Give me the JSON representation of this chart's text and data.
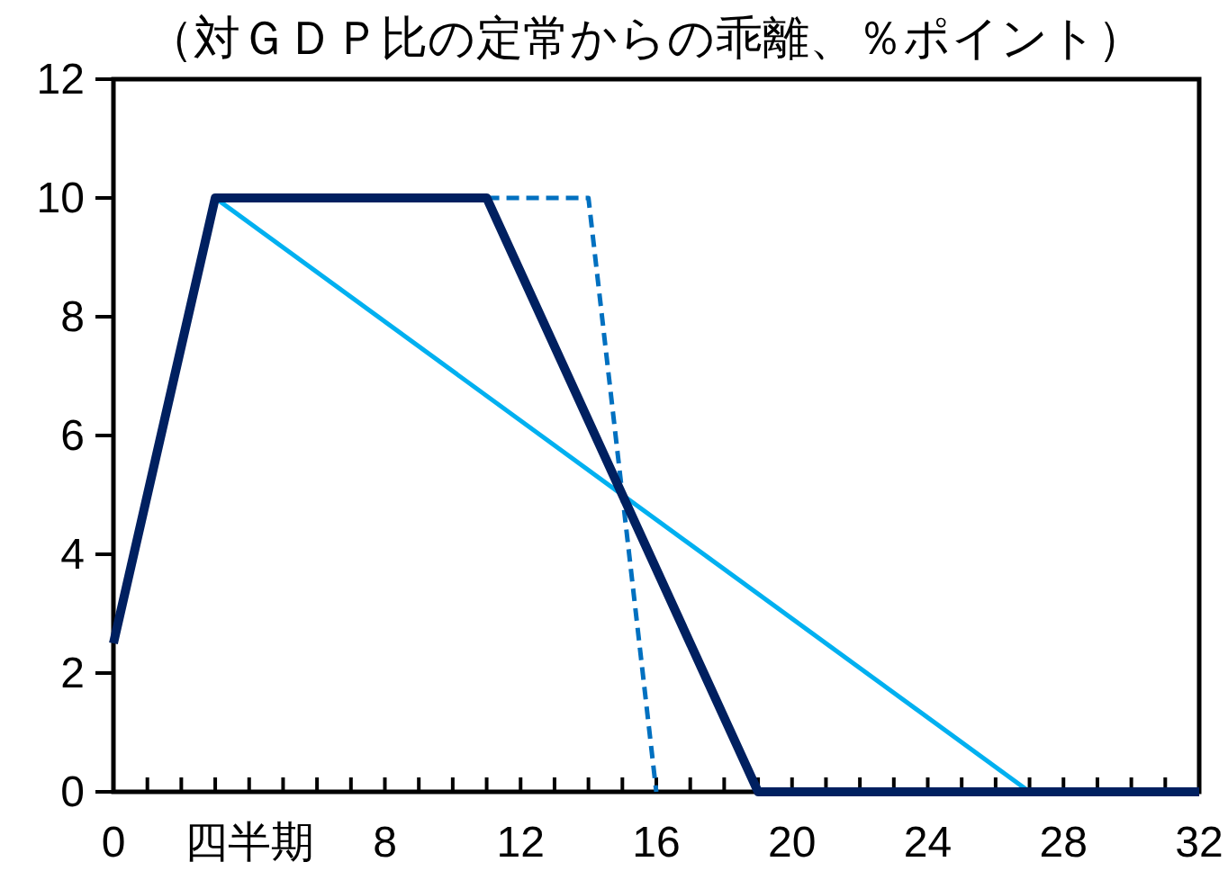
{
  "chart_data": {
    "type": "line",
    "title": "（対ＧＤＰ比の定常からの乖離、％ポイント）",
    "xlim": [
      0,
      32
    ],
    "xticks": [
      0,
      {
        "value": 1,
        "label": null
      },
      {
        "value": 2,
        "label": null
      },
      {
        "value": 3,
        "label": null
      },
      {
        "value": 4,
        "label": "四半期"
      },
      {
        "value": 5,
        "label": null
      },
      {
        "value": 6,
        "label": null
      },
      {
        "value": 7,
        "label": null
      },
      8,
      {
        "value": 9,
        "label": null
      },
      {
        "value": 10,
        "label": null
      },
      {
        "value": 11,
        "label": null
      },
      12,
      {
        "value": 13,
        "label": null
      },
      {
        "value": 14,
        "label": null
      },
      {
        "value": 15,
        "label": null
      },
      16,
      {
        "value": 17,
        "label": null
      },
      {
        "value": 18,
        "label": null
      },
      {
        "value": 19,
        "label": null
      },
      20,
      {
        "value": 21,
        "label": null
      },
      {
        "value": 22,
        "label": null
      },
      {
        "value": 23,
        "label": null
      },
      24,
      {
        "value": 25,
        "label": null
      },
      {
        "value": 26,
        "label": null
      },
      {
        "value": 27,
        "label": null
      },
      28,
      {
        "value": 29,
        "label": null
      },
      {
        "value": 30,
        "label": null
      },
      {
        "value": 31,
        "label": null
      },
      32
    ],
    "ylim": [
      0,
      12
    ],
    "yticks": [
      0,
      2,
      4,
      6,
      8,
      10,
      12
    ],
    "marker": "none",
    "series": [
      {
        "color": "#002060",
        "line_style": "solid",
        "x": [
          0,
          3,
          11,
          19,
          32
        ],
        "values": [
          2.5,
          10,
          10,
          0,
          0
        ]
      },
      {
        "color": "#0070c0",
        "line_style": "dashed",
        "x": [
          11,
          14,
          16
        ],
        "values": [
          10,
          10,
          0
        ]
      },
      {
        "color": "#00b0f0",
        "line_style": "solid",
        "x": [
          3,
          27
        ],
        "values": [
          10,
          0
        ]
      }
    ]
  }
}
